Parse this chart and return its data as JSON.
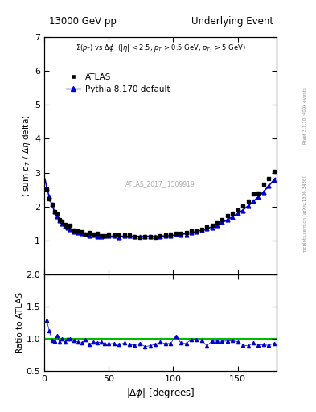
{
  "title_left": "13000 GeV pp",
  "title_right": "Underlying Event",
  "annotation": "ATLAS_2017_I1509919",
  "right_label_top": "Rivet 3.1.10, 400k events",
  "right_label_bottom": "mcplots.cern.ch [arXiv:1306.3436]",
  "ylabel_main": "⟨ sum p_T / Δη delta⟩",
  "ylabel_ratio": "Ratio to ATLAS",
  "xlim": [
    0,
    180
  ],
  "ylim_main": [
    0,
    7
  ],
  "ylim_ratio": [
    0.5,
    2.0
  ],
  "yticks_main": [
    1,
    2,
    3,
    4,
    5,
    6,
    7
  ],
  "yticks_ratio": [
    0.5,
    1.0,
    1.5,
    2.0
  ],
  "legend_entries": [
    "ATLAS",
    "Pythia 8.170 default"
  ],
  "atlas_color": "#000000",
  "pythia_color": "#0000cc",
  "ratio_line_color": "#00bb00"
}
